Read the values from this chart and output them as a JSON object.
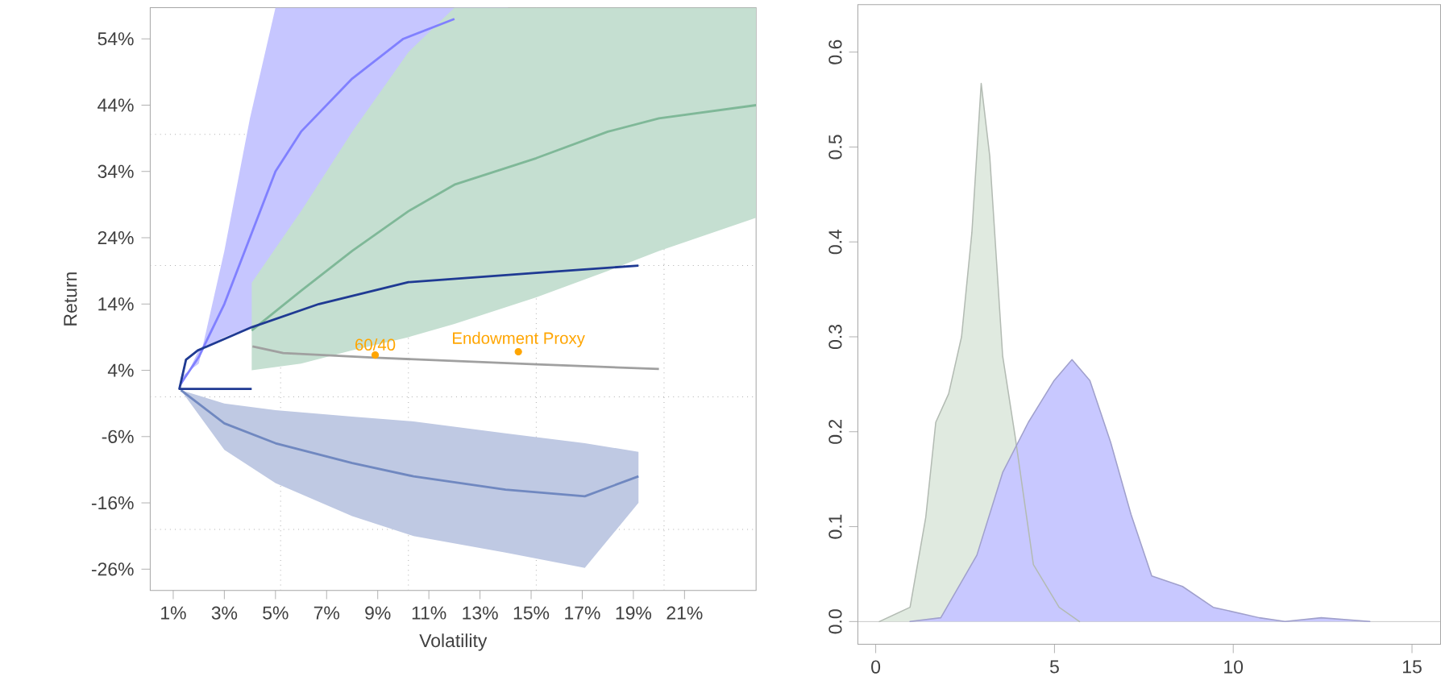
{
  "chart_data": [
    {
      "type": "line",
      "xlabel": "Volatility",
      "ylabel": "Return",
      "xlim": [
        0.1,
        23.8
      ],
      "ylim": [
        -29.2,
        58.7
      ],
      "xticks": [
        {
          "value": 1,
          "label": "1%"
        },
        {
          "value": 3,
          "label": "3%"
        },
        {
          "value": 5,
          "label": "5%"
        },
        {
          "value": 7,
          "label": "7%"
        },
        {
          "value": 9,
          "label": "9%"
        },
        {
          "value": 11,
          "label": "11%"
        },
        {
          "value": 13,
          "label": "13%"
        },
        {
          "value": 15,
          "label": "15%"
        },
        {
          "value": 17,
          "label": "17%"
        },
        {
          "value": 19,
          "label": "19%"
        },
        {
          "value": 21,
          "label": "21%"
        }
      ],
      "yticks": [
        {
          "value": -26,
          "label": "-26%"
        },
        {
          "value": -16,
          "label": "-16%"
        },
        {
          "value": -6,
          "label": "-6%"
        },
        {
          "value": 4,
          "label": "4%"
        },
        {
          "value": 14,
          "label": "14%"
        },
        {
          "value": 24,
          "label": "24%"
        },
        {
          "value": 34,
          "label": "34%"
        },
        {
          "value": 44,
          "label": "44%"
        },
        {
          "value": 54,
          "label": "54%"
        }
      ],
      "ref_lines": [
        {
          "axis": "x",
          "value": 5.2,
          "color": "#b0b0b0",
          "line_style": "dotted"
        },
        {
          "axis": "x",
          "value": 10.2,
          "color": "#b0b0b0",
          "line_style": "dotted"
        },
        {
          "axis": "x",
          "value": 15.2,
          "color": "#b0b0b0",
          "line_style": "dotted"
        },
        {
          "axis": "x",
          "value": 20.2,
          "color": "#b0b0b0",
          "line_style": "dotted"
        },
        {
          "axis": "y",
          "value": 39.6,
          "color": "#b0b0b0",
          "line_style": "dotted"
        },
        {
          "axis": "y",
          "value": 19.8,
          "color": "#b0b0b0",
          "line_style": "dotted"
        },
        {
          "axis": "y",
          "value": 0,
          "color": "#b0b0b0",
          "line_style": "dotted"
        },
        {
          "axis": "y",
          "value": -20,
          "color": "#b0b0b0",
          "line_style": "dotted"
        }
      ],
      "annotations": [
        {
          "text": "60/40",
          "x": 8.9,
          "y": 6.3
        },
        {
          "text": "Endowment Proxy",
          "x": 14.5,
          "y": 6.8
        }
      ],
      "series": [
        {
          "color": "#8080ff",
          "x": [
            1.3,
            2,
            3,
            4,
            5,
            6,
            8,
            10,
            12,
            14.1
          ],
          "values": [
            2,
            6,
            14,
            24,
            34,
            40,
            48,
            54,
            57,
            null
          ],
          "lower": [
            1.5,
            7,
            9,
            10.5,
            12,
            13,
            15,
            17,
            18,
            58.7
          ],
          "upper": [
            3,
            5,
            22,
            42,
            58.7,
            58.7,
            58.7,
            58.7,
            58.7,
            58.7
          ]
        },
        {
          "color": "#7fb898",
          "x": [
            4.07,
            6,
            8,
            10.2,
            12,
            15.2,
            18,
            20,
            23.8
          ],
          "values": [
            10,
            16,
            22,
            28,
            32,
            36,
            40,
            42,
            44
          ],
          "lower": [
            4,
            5,
            7,
            9,
            11,
            15,
            19,
            22,
            27
          ],
          "upper": [
            17.2,
            28,
            40,
            52,
            58.7,
            58.7,
            58.7,
            58.7,
            58.7
          ]
        },
        {
          "color": "#7088c0",
          "x": [
            1.3,
            3,
            5,
            8,
            10.4,
            14,
            17.1,
            19.2
          ],
          "values": [
            1,
            -4,
            -7,
            -10,
            -12,
            -14,
            -15,
            -12
          ],
          "lower": [
            1,
            -8,
            -13,
            -18,
            -21,
            -23.5,
            -25.8,
            -16
          ],
          "upper": [
            1,
            -1,
            -2,
            -3,
            -3.7,
            -5.5,
            -7,
            -8.3
          ]
        },
        {
          "color": "#1f3a93",
          "x": [
            4.07,
            1.24,
            1.5,
            1.96,
            4.07,
            6.7,
            10.2,
            15.2,
            19.2
          ],
          "values": [
            1.2,
            1.2,
            5.6,
            7,
            10.5,
            14,
            17.3,
            18.7,
            19.8
          ]
        },
        {
          "color": "#a0a0a0",
          "x": [
            4.1,
            5.3,
            8.9,
            15.2,
            20
          ],
          "values": [
            7.6,
            6.6,
            5.9,
            4.9,
            4.2
          ]
        },
        {
          "type": "scatter",
          "marker": "circle",
          "color": "#ffa500",
          "x": [
            8.9,
            14.5
          ],
          "values": [
            6.3,
            6.8
          ]
        }
      ]
    },
    {
      "type": "area",
      "xlim": [
        -0.5,
        15.8
      ],
      "ylim": [
        -0.024,
        0.65
      ],
      "xticks": [
        0,
        5,
        10,
        15
      ],
      "yticks": [
        {
          "value": 0,
          "label": "0.0"
        },
        {
          "value": 0.1,
          "label": "0.1"
        },
        {
          "value": 0.2,
          "label": "0.2"
        },
        {
          "value": 0.3,
          "label": "0.3"
        },
        {
          "value": 0.4,
          "label": "0.4"
        },
        {
          "value": 0.5,
          "label": "0.5"
        },
        {
          "value": 0.6,
          "label": "0.6"
        }
      ],
      "ref_lines": [
        {
          "axis": "y",
          "value": 0,
          "color": "#c0c0c0",
          "line_style": "solid"
        }
      ],
      "series": [
        {
          "color": "#e0eae0",
          "x": [
            0.1,
            0.96,
            1.4,
            1.68,
            2.04,
            2.4,
            2.69,
            2.95,
            3.19,
            3.55,
            3.9,
            4.41,
            5.13,
            5.7
          ],
          "values": [
            0,
            0.015,
            0.11,
            0.21,
            0.24,
            0.3,
            0.41,
            0.567,
            0.49,
            0.28,
            0.195,
            0.06,
            0.015,
            0
          ]
        },
        {
          "color": "#c8c8ff",
          "x": [
            0.96,
            1.82,
            2.83,
            3.55,
            4.27,
            4.99,
            5.49,
            5.99,
            6.57,
            7.14,
            7.72,
            8.58,
            9.44,
            10.73,
            11.45,
            12.46,
            13.82
          ],
          "values": [
            0,
            0.004,
            0.07,
            0.157,
            0.21,
            0.254,
            0.276,
            0.254,
            0.189,
            0.113,
            0.048,
            0.037,
            0.015,
            0.004,
            0,
            0.004,
            0
          ]
        }
      ]
    }
  ]
}
